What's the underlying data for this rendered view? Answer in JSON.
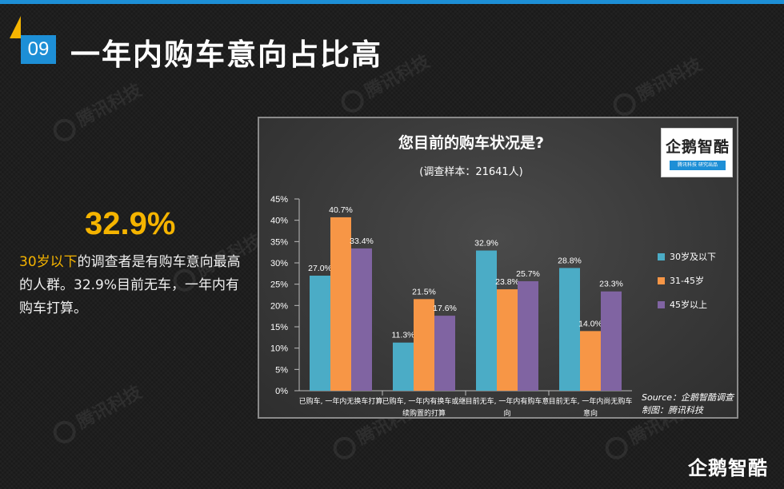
{
  "slide": {
    "number": "09",
    "title": "一年内购车意向占比高",
    "big_stat": "32.9%",
    "desc_highlight": "30岁以下",
    "desc_rest": "的调查者是有购车意向最高的人群。32.9%目前无车，一年内有购车打算。",
    "watermark_text": "腾讯科技",
    "footer_logo": "企鹅智酷"
  },
  "colors": {
    "accent_blue": "#1d8fd6",
    "accent_yellow": "#f5b400",
    "series_1": "#4bacc6",
    "series_2": "#f79646",
    "series_3": "#8064a2"
  },
  "chart_logo": {
    "name": "企鹅智酷",
    "tagline": "腾讯科技 研究出品"
  },
  "chart_data": {
    "type": "bar",
    "title": "您目前的购车状况是?",
    "subtitle": "(调查样本：21641人)",
    "categories": [
      [
        "已购车, 一年内无换车打算"
      ],
      [
        "已购车, 一年内有换车或继",
        "续购置的打算"
      ],
      [
        "目前无车, 一年内有购车意",
        "向"
      ],
      [
        "目前无车, 一年内尚无购车",
        "意向"
      ]
    ],
    "series": [
      {
        "name": "30岁及以下",
        "values": [
          27.0,
          11.3,
          32.9,
          28.8
        ]
      },
      {
        "name": "31-45岁",
        "values": [
          40.7,
          21.5,
          23.8,
          14.0
        ]
      },
      {
        "name": "45岁以上",
        "values": [
          33.4,
          17.6,
          25.7,
          23.3
        ]
      }
    ],
    "yticks": [
      "0%",
      "5%",
      "10%",
      "15%",
      "20%",
      "25%",
      "30%",
      "35%",
      "40%",
      "45%"
    ],
    "ylim": [
      0,
      45
    ],
    "legend_position": "right",
    "grid": false,
    "source_line1": "Source：企鹅智酷调查",
    "source_line2": "制图：腾讯科技"
  }
}
